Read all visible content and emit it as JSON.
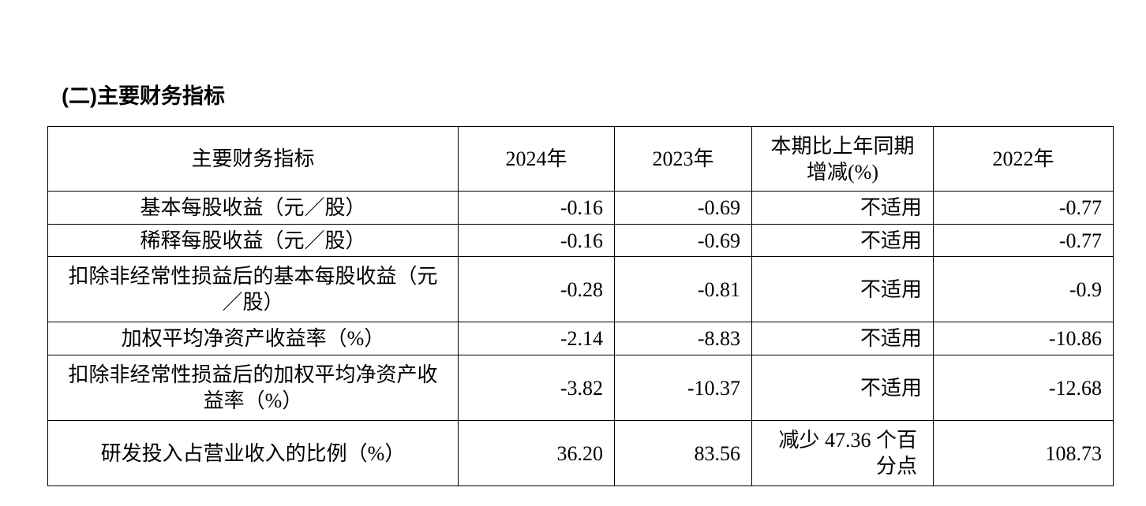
{
  "title": "(二)主要财务指标",
  "headers": [
    "主要财务指标",
    "2024年",
    "2023年",
    "本期比上年同期增减(%)",
    "2022年"
  ],
  "rows": [
    {
      "name": "基本每股收益（元／股）",
      "y2024": "-0.16",
      "y2023": "-0.69",
      "change": "不适用",
      "y2022": "-0.77"
    },
    {
      "name": "稀释每股收益（元／股）",
      "y2024": "-0.16",
      "y2023": "-0.69",
      "change": "不适用",
      "y2022": "-0.77"
    },
    {
      "name": "扣除非经常性损益后的基本每股收益（元／股）",
      "y2024": "-0.28",
      "y2023": "-0.81",
      "change": "不适用",
      "y2022": "-0.9"
    },
    {
      "name": "加权平均净资产收益率（%）",
      "y2024": "-2.14",
      "y2023": "-8.83",
      "change": "不适用",
      "y2022": "-10.86"
    },
    {
      "name": "扣除非经常性损益后的加权平均净资产收益率（%）",
      "y2024": "-3.82",
      "y2023": "-10.37",
      "change": "不适用",
      "y2022": "-12.68"
    },
    {
      "name": "研发投入占营业收入的比例（%）",
      "y2024": "36.20",
      "y2023": "83.56",
      "change": "减少 47.36 个百分点",
      "y2022": "108.73"
    }
  ]
}
